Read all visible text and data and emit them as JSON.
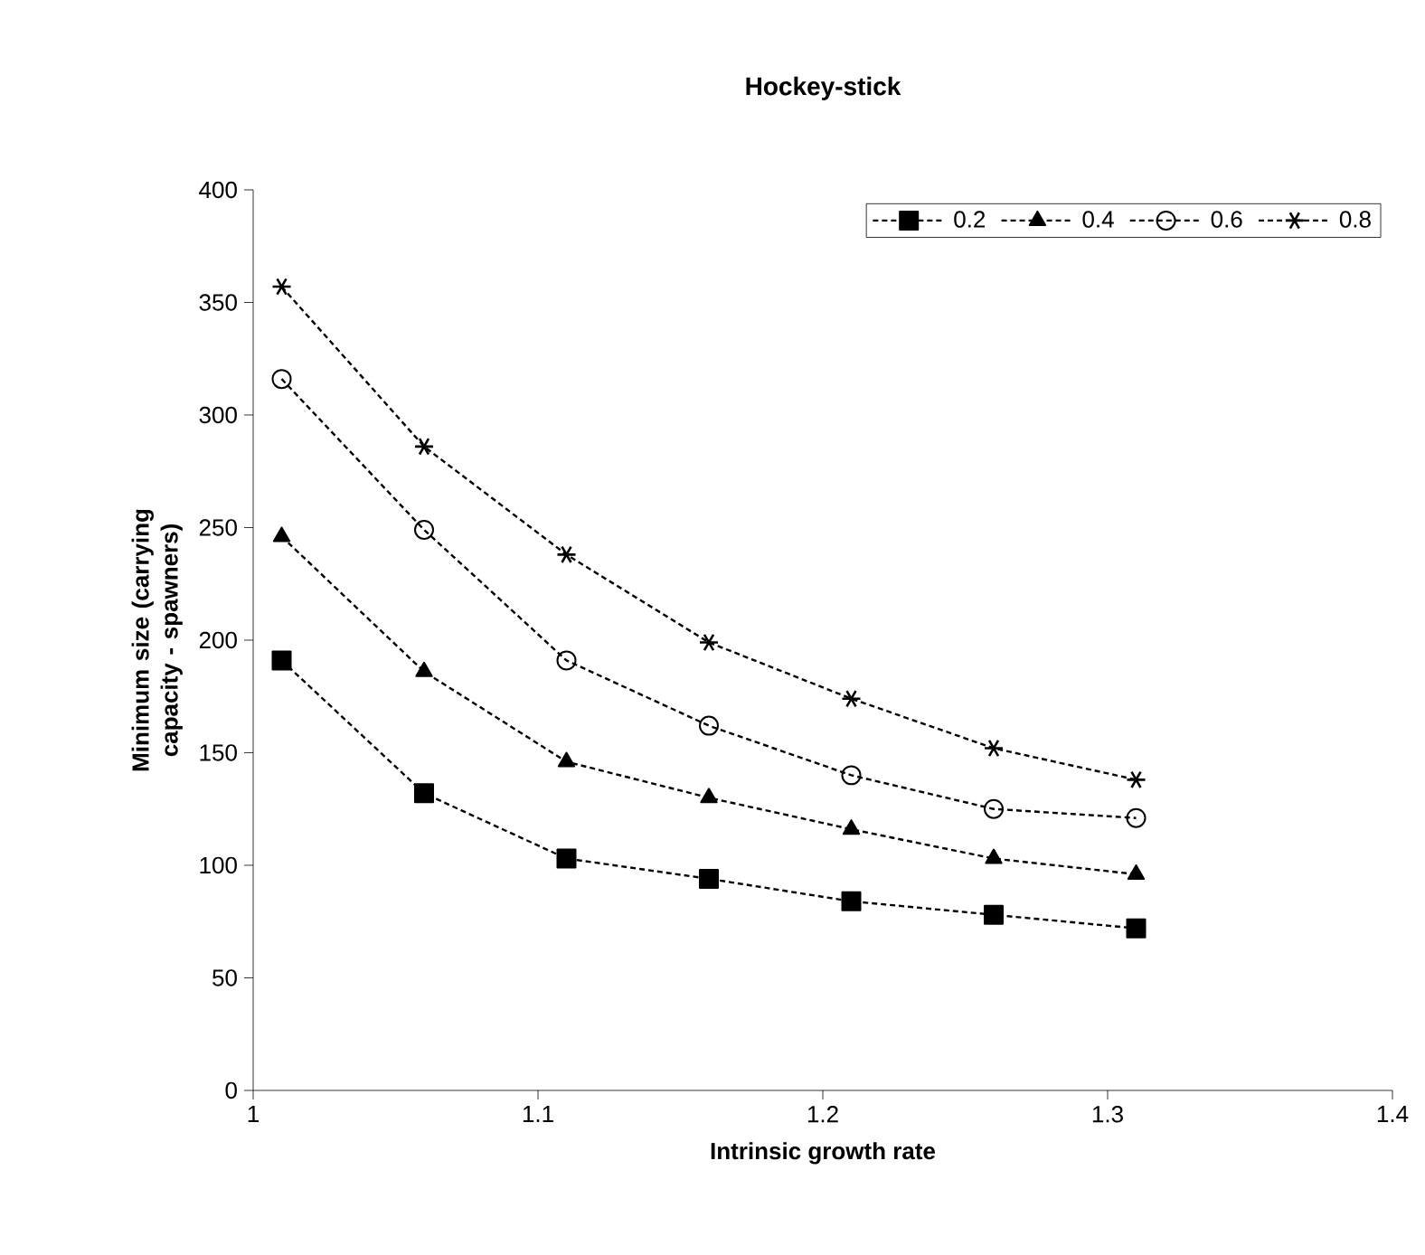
{
  "chart_data": {
    "type": "line",
    "title": "Hockey-stick",
    "xlabel": "Intrinsic growth rate",
    "ylabel": "Minimum size (carrying capacity - spawners)",
    "x": [
      1.01,
      1.06,
      1.11,
      1.16,
      1.21,
      1.26,
      1.31
    ],
    "series": [
      {
        "name": "0.2",
        "color": "#000000",
        "marker": "square",
        "values": [
          191,
          132,
          103,
          94,
          84,
          78,
          72
        ]
      },
      {
        "name": "0.4",
        "color": "#000000",
        "marker": "triangle",
        "values": [
          246,
          186,
          146,
          130,
          116,
          103,
          96
        ]
      },
      {
        "name": "0.6",
        "color": "#000000",
        "marker": "circle",
        "values": [
          316,
          249,
          191,
          162,
          140,
          125,
          121
        ]
      },
      {
        "name": "0.8",
        "color": "#000000",
        "marker": "cross",
        "values": [
          357,
          286,
          238,
          199,
          174,
          152,
          138
        ]
      }
    ],
    "xlim": [
      1,
      1.4
    ],
    "xticks": [
      1,
      1.1,
      1.2,
      1.3,
      1.4
    ],
    "ylim": [
      0,
      400
    ],
    "yticks": [
      0,
      50,
      100,
      150,
      200,
      250,
      300,
      350,
      400
    ],
    "line_style": "dashed",
    "legend": "top right",
    "grid": false
  }
}
